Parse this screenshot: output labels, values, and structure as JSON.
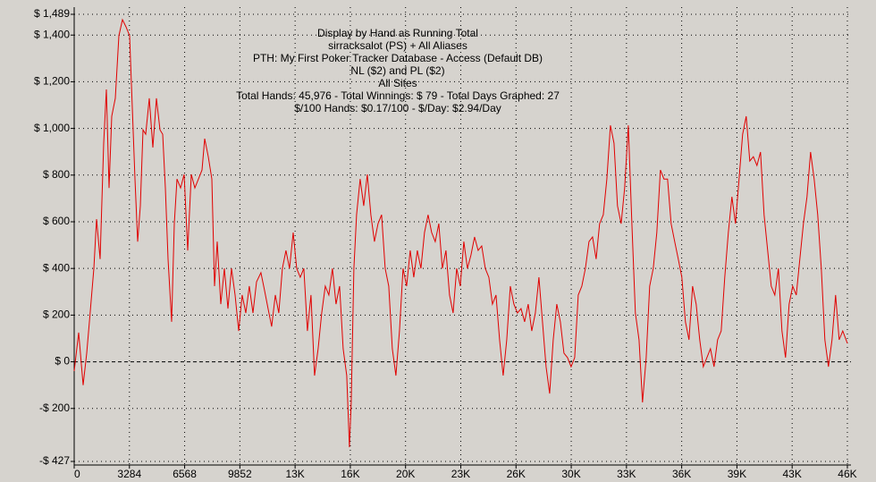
{
  "chart_data": {
    "type": "line",
    "title_lines": [
      "Display by Hand as Running Total",
      "sirracksalot (PS) + All Aliases",
      "PTH: My First Poker Tracker Database - Access (Default DB)",
      "NL ($2) and PL ($2)",
      "All Sites",
      "Total Hands: 45,976 - Total Winnings: $ 79 - Total Days Graphed: 27",
      "$/100 Hands: $0.17/100 - $/Day: $2.94/Day"
    ],
    "color": "#e00000",
    "grid": true,
    "xlim": [
      0,
      46190
    ],
    "ylim": [
      -427,
      1489
    ],
    "xticks": [
      0,
      3284,
      6568,
      9852,
      {
        "value": 13136,
        "label": "13K"
      },
      {
        "value": 16420,
        "label": "16K"
      },
      {
        "value": 19704,
        "label": "20K"
      },
      {
        "value": 22988,
        "label": "23K"
      },
      {
        "value": 26272,
        "label": "26K"
      },
      {
        "value": 29556,
        "label": "30K"
      },
      {
        "value": 32840,
        "label": "33K"
      },
      {
        "value": 36124,
        "label": "36K"
      },
      {
        "value": 39408,
        "label": "39K"
      },
      {
        "value": 42692,
        "label": "43K"
      },
      {
        "value": 45976,
        "label": "46K"
      }
    ],
    "yticks": [
      {
        "value": -427,
        "label": "-$ 427"
      },
      {
        "value": -200,
        "label": "-$ 200"
      },
      {
        "value": 0,
        "label": "$ 0"
      },
      {
        "value": 200,
        "label": "$ 200"
      },
      {
        "value": 400,
        "label": "$ 400"
      },
      {
        "value": 600,
        "label": "$ 600"
      },
      {
        "value": 800,
        "label": "$ 800"
      },
      {
        "value": 1000,
        "label": "$ 1,000"
      },
      {
        "value": 1200,
        "label": "$ 1,200"
      },
      {
        "value": 1400,
        "label": "$ 1,400"
      },
      {
        "value": 1489,
        "label": "$ 1,489"
      }
    ],
    "x": [
      0,
      266,
      531,
      744,
      903,
      1169,
      1329,
      1541,
      1754,
      1913,
      2072,
      2232,
      2444,
      2657,
      2870,
      3082,
      3295,
      3454,
      3614,
      3773,
      3932,
      4092,
      4251,
      4464,
      4676,
      4889,
      5101,
      5261,
      5420,
      5580,
      5792,
      5952,
      6111,
      6324,
      6536,
      6749,
      6961,
      7174,
      7386,
      7599,
      7758,
      7971,
      8184,
      8343,
      8502,
      8715,
      8928,
      9140,
      9353,
      9565,
      9778,
      9990,
      10203,
      10415,
      10628,
      10841,
      11106,
      11319,
      11531,
      11744,
      11957,
      12169,
      12382,
      12594,
      12807,
      13020,
      13232,
      13444,
      13657,
      13870,
      14082,
      14295,
      14507,
      14720,
      14933,
      15145,
      15358,
      15570,
      15783,
      15995,
      16208,
      16367,
      16473,
      16633,
      16792,
      17005,
      17217,
      17430,
      17642,
      17855,
      18068,
      18280,
      18493,
      18705,
      18918,
      19130,
      19343,
      19556,
      19768,
      19981,
      20193,
      20406,
      20618,
      20831,
      21043,
      21256,
      21469,
      21681,
      21894,
      22106,
      22319,
      22531,
      22744,
      22957,
      23169,
      23382,
      23594,
      23807,
      24019,
      24232,
      24444,
      24657,
      24870,
      25082,
      25295,
      25507,
      25720,
      25932,
      26145,
      26357,
      26570,
      26783,
      26995,
      27208,
      27420,
      27633,
      27845,
      28058,
      28271,
      28483,
      28696,
      28908,
      29121,
      29333,
      29546,
      29758,
      29971,
      30184,
      30396,
      30609,
      30821,
      31034,
      31246,
      31459,
      31672,
      31884,
      32097,
      32309,
      32522,
      32734,
      32947,
      33160,
      33372,
      33585,
      33797,
      34010,
      34222,
      34435,
      34647,
      34860,
      35073,
      35285,
      35498,
      35710,
      35923,
      36135,
      36348,
      36560,
      36773,
      36986,
      37198,
      37411,
      37623,
      37836,
      38048,
      38261,
      38474,
      38686,
      38899,
      39111,
      39324,
      39536,
      39749,
      39962,
      40174,
      40387,
      40599,
      40812,
      41024,
      41237,
      41450,
      41662,
      41875,
      42087,
      42300,
      42512,
      42725,
      42938,
      43150,
      43363,
      43575,
      43788,
      44000,
      44213,
      44426,
      44638,
      44851,
      45063,
      45276,
      45488,
      45701,
      45976
    ],
    "values": [
      -40,
      125,
      -100,
      37,
      171,
      400,
      611,
      440,
      937,
      1167,
      745,
      1052,
      1129,
      1397,
      1466,
      1435,
      1397,
      1090,
      783,
      515,
      668,
      994,
      975,
      1129,
      918,
      1129,
      994,
      975,
      745,
      440,
      171,
      592,
      783,
      745,
      803,
      477,
      803,
      745,
      783,
      822,
      956,
      879,
      783,
      324,
      515,
      247,
      400,
      228,
      400,
      286,
      132,
      286,
      209,
      324,
      209,
      343,
      382,
      305,
      228,
      151,
      286,
      209,
      400,
      477,
      400,
      554,
      400,
      362,
      400,
      132,
      286,
      -59,
      56,
      209,
      324,
      286,
      400,
      247,
      324,
      56,
      -59,
      -366,
      -174,
      400,
      630,
      783,
      668,
      803,
      630,
      515,
      592,
      630,
      400,
      324,
      56,
      -59,
      132,
      400,
      324,
      477,
      362,
      477,
      400,
      554,
      630,
      554,
      515,
      592,
      400,
      477,
      286,
      209,
      400,
      324,
      515,
      400,
      458,
      535,
      477,
      496,
      400,
      362,
      247,
      286,
      94,
      -59,
      94,
      324,
      247,
      209,
      228,
      171,
      247,
      132,
      209,
      362,
      171,
      -21,
      -136,
      94,
      247,
      171,
      37,
      18,
      -21,
      18,
      286,
      324,
      400,
      515,
      535,
      440,
      592,
      630,
      783,
      1013,
      937,
      668,
      592,
      745,
      1013,
      592,
      209,
      94,
      -174,
      18,
      324,
      400,
      554,
      822,
      783,
      783,
      592,
      515,
      440,
      362,
      171,
      94,
      324,
      247,
      94,
      -21,
      18,
      56,
      -21,
      94,
      132,
      362,
      554,
      707,
      592,
      783,
      975,
      1052,
      860,
      879,
      841,
      899,
      630,
      477,
      324,
      286,
      400,
      132,
      18,
      247,
      324,
      286,
      440,
      592,
      707,
      899,
      783,
      630,
      400,
      94,
      -21,
      94,
      286,
      94,
      132,
      79
    ]
  }
}
